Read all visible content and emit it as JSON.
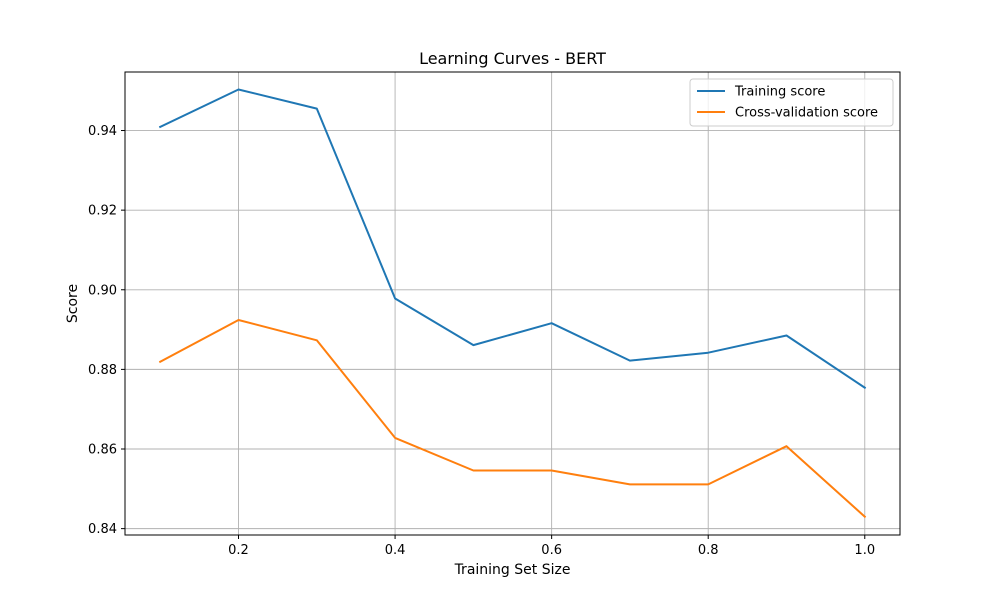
{
  "chart_data": {
    "type": "line",
    "title": "Learning Curves - BERT",
    "xlabel": "Training Set Size",
    "ylabel": "Score",
    "x": [
      0.1,
      0.2,
      0.3,
      0.4,
      0.5,
      0.6,
      0.7,
      0.8,
      0.9,
      1.0
    ],
    "series": [
      {
        "name": "Training score",
        "color": "#1f77b4",
        "values": [
          0.9409,
          0.9503,
          0.9455,
          0.8978,
          0.8861,
          0.8916,
          0.8822,
          0.8842,
          0.8885,
          0.8754
        ]
      },
      {
        "name": "Cross-validation score",
        "color": "#ff7f0e",
        "values": [
          0.8819,
          0.8924,
          0.8873,
          0.8628,
          0.8546,
          0.8546,
          0.8511,
          0.8511,
          0.8607,
          0.843
        ]
      }
    ],
    "xlim": [
      0.055,
      1.045
    ],
    "ylim": [
      0.8384,
      0.9547
    ],
    "xticks": [
      0.2,
      0.4,
      0.6,
      0.8,
      1.0
    ],
    "xtick_labels": [
      "0.2",
      "0.4",
      "0.6",
      "0.8",
      "1.0"
    ],
    "yticks": [
      0.84,
      0.86,
      0.88,
      0.9,
      0.92,
      0.94
    ],
    "ytick_labels": [
      "0.84",
      "0.86",
      "0.88",
      "0.90",
      "0.92",
      "0.94"
    ],
    "grid": true,
    "legend_position": "upper right"
  }
}
